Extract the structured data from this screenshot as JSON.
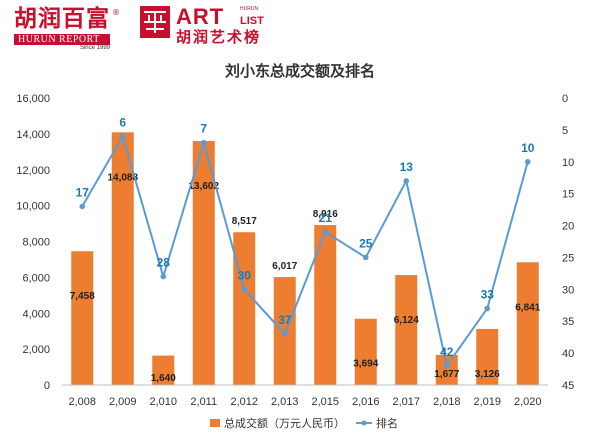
{
  "logos": {
    "hurun_cn": "胡润百富",
    "hurun_en": "HURUN REPORT",
    "hurun_since": "Since 1999",
    "art_en": "ART",
    "art_hurun": "HURUN",
    "art_list": "LIST",
    "art_cn": "胡润艺术榜"
  },
  "chart_data": {
    "type": "bar",
    "title": "刘小东总成交额及排名",
    "categories": [
      "2,008",
      "2,009",
      "2,010",
      "2,011",
      "2,012",
      "2,013",
      "2,015",
      "2,016",
      "2,017",
      "2,018",
      "2,019",
      "2,020"
    ],
    "series": [
      {
        "name": "总成交额（万元人民币）",
        "type": "bar",
        "axis": "left",
        "color": "#ed7d31",
        "values": [
          7458,
          14088,
          1640,
          13602,
          8517,
          6017,
          8916,
          3694,
          6124,
          1677,
          3126,
          6841
        ],
        "labels": [
          "7,458",
          "14,088",
          "1,640",
          "13,602",
          "8,517",
          "6,017",
          "8,916",
          "3,694",
          "6,124",
          "1,677",
          "3,126",
          "6,841"
        ]
      },
      {
        "name": "排名",
        "type": "line",
        "axis": "right",
        "color": "#5b9bd5",
        "values": [
          17,
          6,
          28,
          7,
          30,
          37,
          21,
          25,
          13,
          42,
          33,
          10
        ],
        "labels": [
          "17",
          "6",
          "28",
          "7",
          "30",
          "37",
          "21",
          "25",
          "13",
          "42",
          "33",
          "10"
        ]
      }
    ],
    "y_left": {
      "min": 0,
      "max": 16000,
      "ticks": [
        0,
        2000,
        4000,
        6000,
        8000,
        10000,
        12000,
        14000,
        16000
      ],
      "tick_labels": [
        "0",
        "2,000",
        "4,000",
        "6,000",
        "8,000",
        "10,000",
        "12,000",
        "14,000",
        "16,000"
      ]
    },
    "y_right": {
      "min": 0,
      "max": 45,
      "inverted": true,
      "ticks": [
        0,
        5,
        10,
        15,
        20,
        25,
        30,
        35,
        40,
        45
      ],
      "tick_labels": [
        "0",
        "5",
        "10",
        "15",
        "20",
        "25",
        "30",
        "35",
        "40",
        "45"
      ]
    },
    "grid": false,
    "legend": "bottom"
  }
}
